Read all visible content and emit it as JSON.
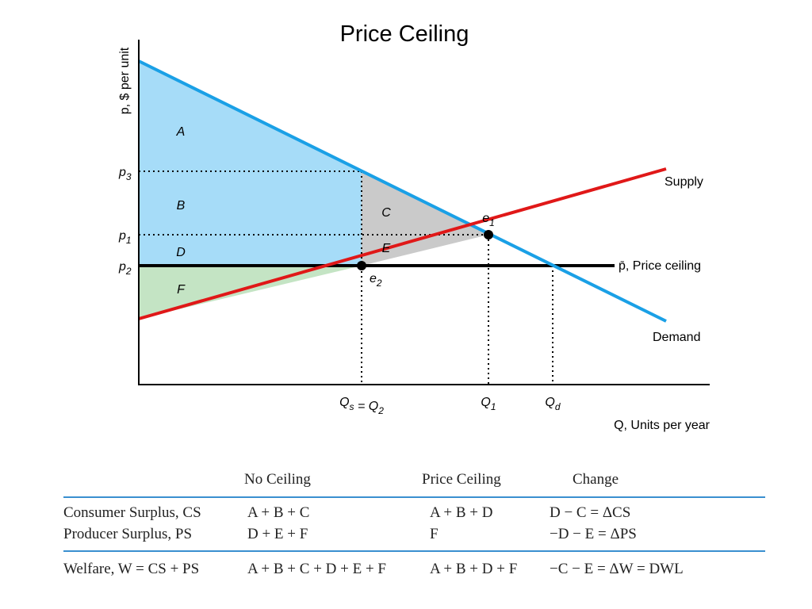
{
  "title": "Price Ceiling",
  "y_axis_label": "p, $ per unit",
  "x_axis_label": "Q, Units per year",
  "price_labels": [
    {
      "parts": [
        {
          "text": "p",
          "sub": "3"
        }
      ]
    },
    {
      "parts": [
        {
          "text": "p",
          "sub": "1"
        }
      ]
    },
    {
      "parts": [
        {
          "text": "p",
          "sub": "2"
        }
      ]
    }
  ],
  "quantity_labels": [
    {
      "parts": [
        {
          "text": "Q",
          "sub": "s"
        },
        {
          "text": " = Q",
          "sub": "2"
        }
      ]
    },
    {
      "parts": [
        {
          "text": "Q",
          "sub": "1"
        }
      ]
    },
    {
      "parts": [
        {
          "text": "Q",
          "sub": "d"
        }
      ]
    }
  ],
  "points": [
    {
      "parts": [
        {
          "text": "e",
          "sub": "1"
        }
      ]
    },
    {
      "parts": [
        {
          "text": "e",
          "sub": "2"
        }
      ]
    }
  ],
  "regions": [
    "A",
    "B",
    "C",
    "D",
    "E",
    "F"
  ],
  "curves": {
    "supply": "Supply",
    "demand": "Demand",
    "ceiling": "p̄, Price ceiling"
  },
  "table": {
    "headers": [
      "No Ceiling",
      "Price Ceiling",
      "Change"
    ],
    "rows": [
      [
        "Consumer Surplus, CS",
        "A + B + C",
        "A + B + D",
        "D − C = ΔCS"
      ],
      [
        "Producer Surplus, PS",
        "D + E + F",
        "F",
        "−D − E = ΔPS"
      ],
      [
        "Welfare, W = CS + PS",
        "A + B + C + D + E + F",
        "A + B + D + F",
        "−C − E = ΔW = DWL"
      ]
    ]
  }
}
